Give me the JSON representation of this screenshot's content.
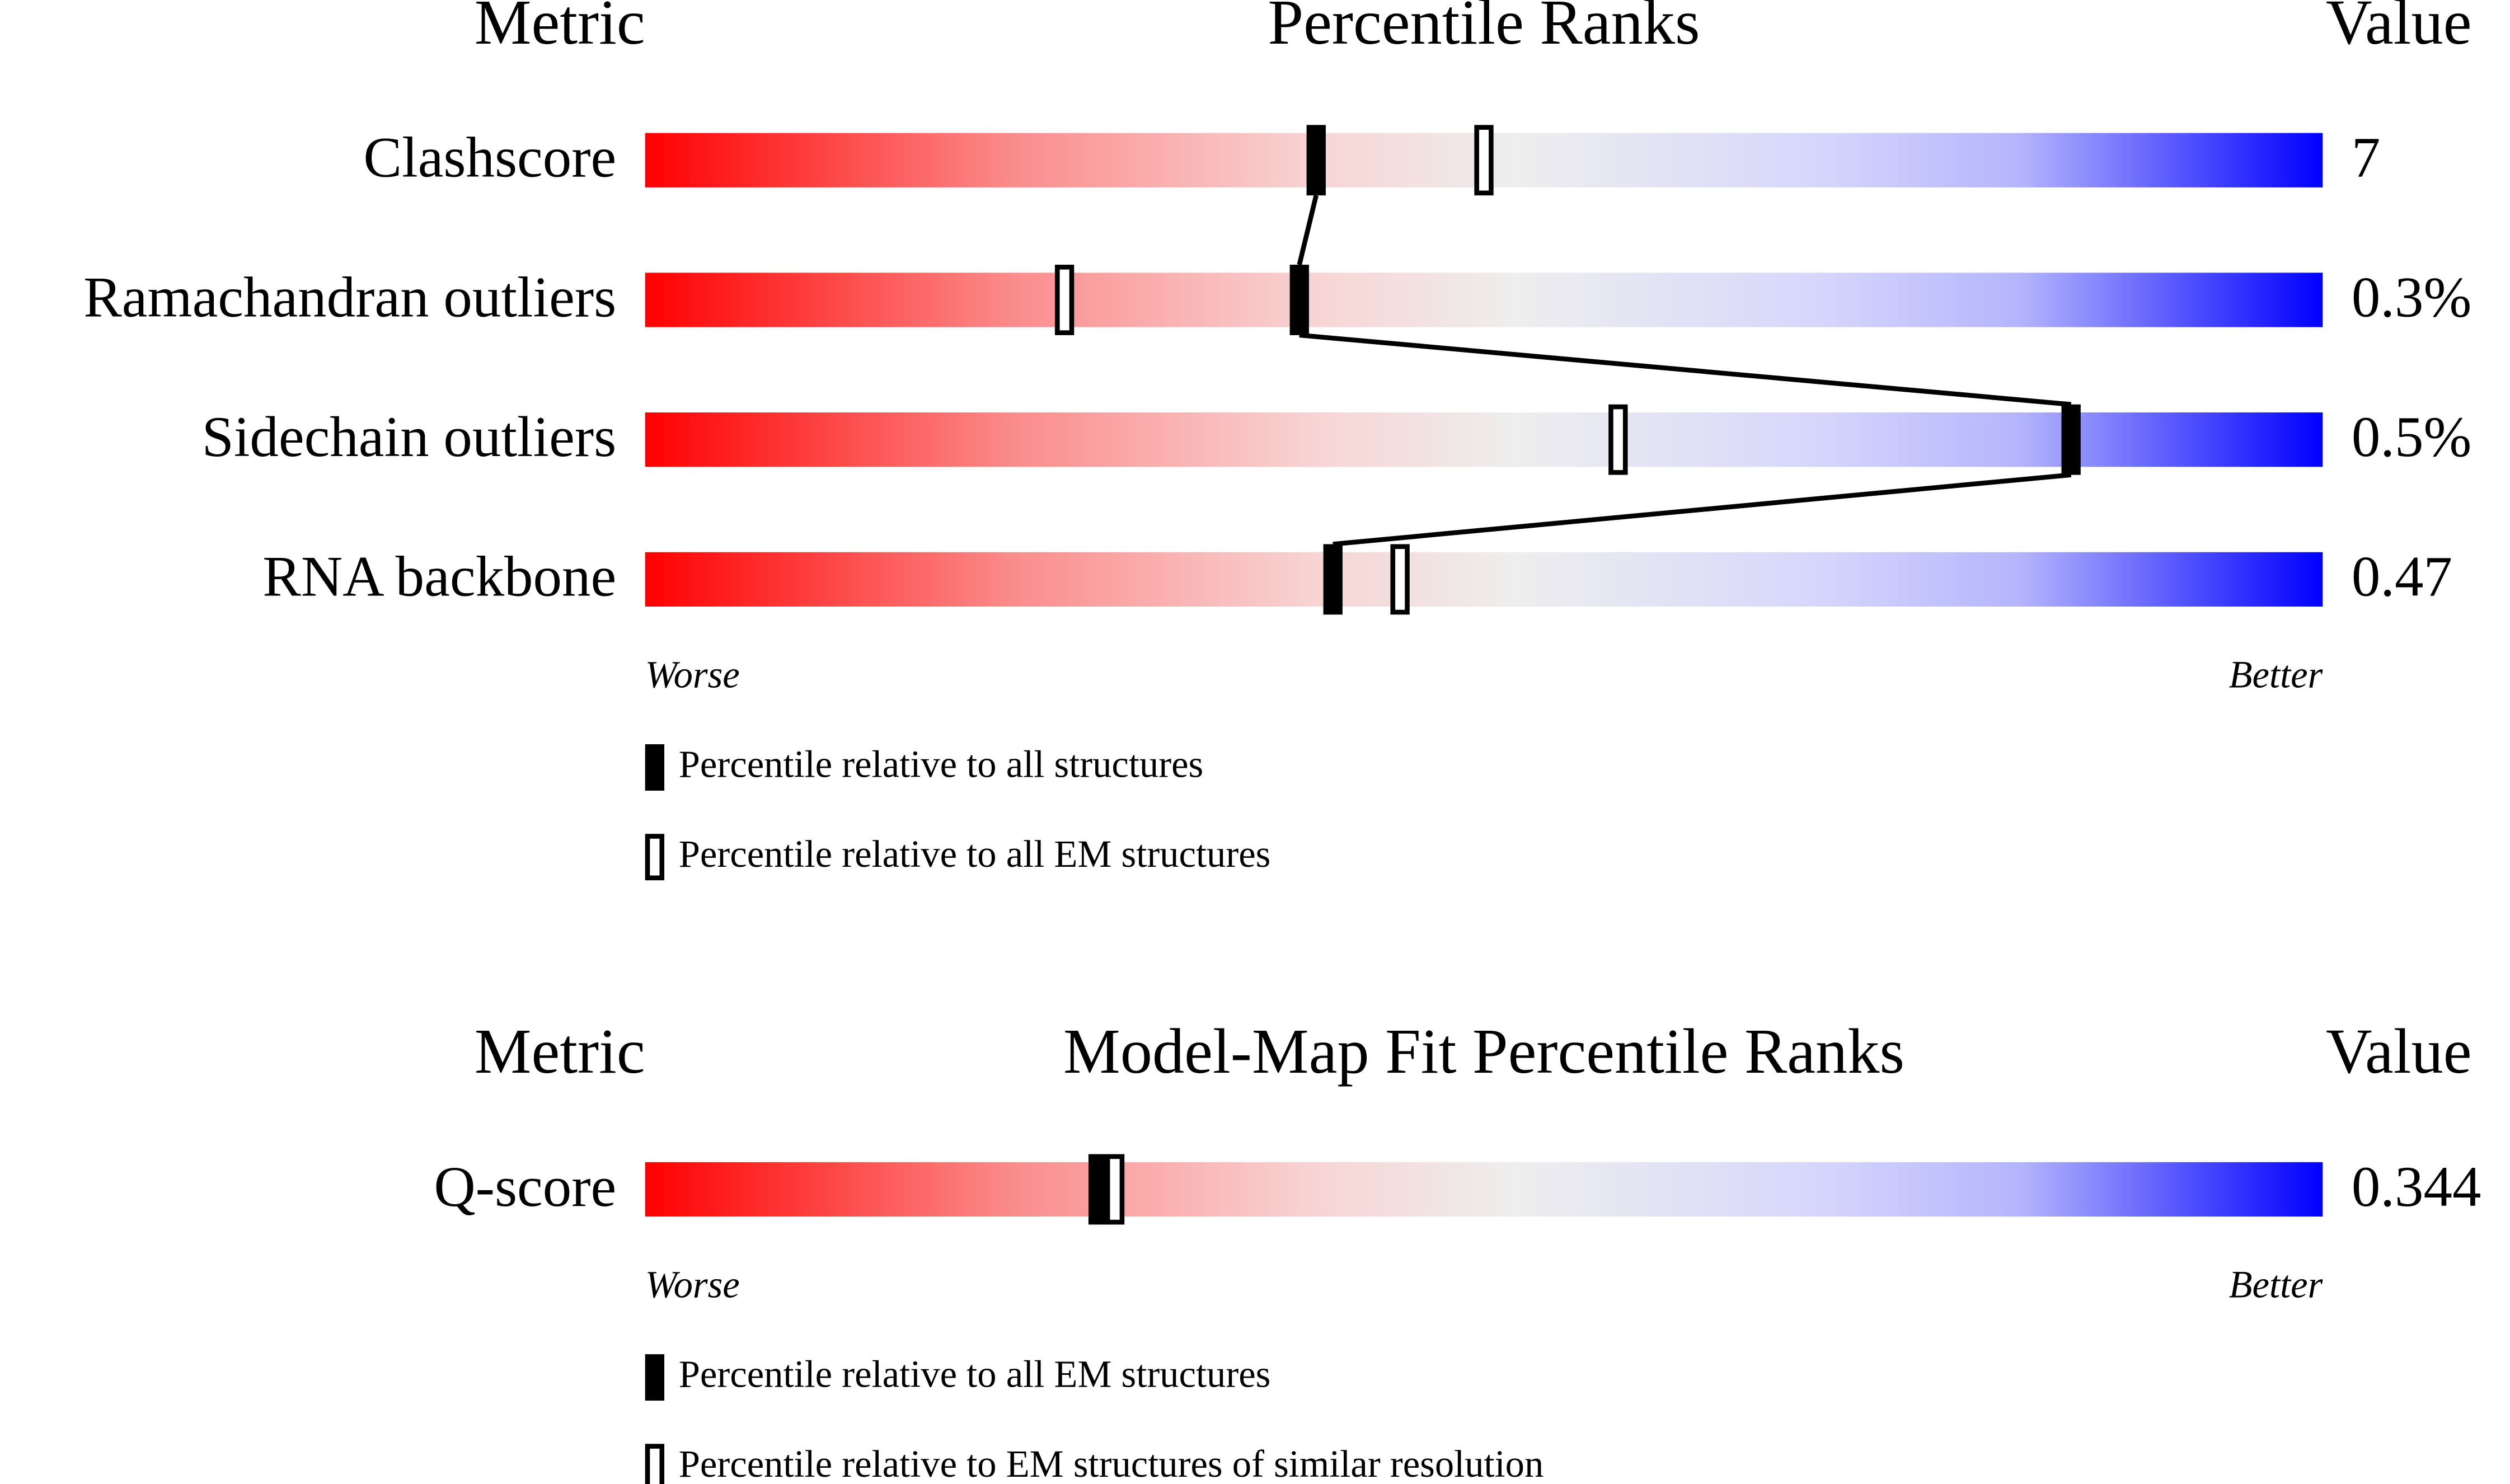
{
  "chart_data": [
    {
      "type": "percentile",
      "metric_header": "Metric",
      "title": "Percentile Ranks",
      "value_header": "Value",
      "categories": [
        "Clashscore",
        "Ramachandran outliers",
        "Sidechain outliers",
        "RNA backbone"
      ],
      "metric_values": [
        "7",
        "0.3%",
        "0.5%",
        "0.47"
      ],
      "xlim": [
        0,
        100
      ],
      "worse": "Worse",
      "better": "Better",
      "connect_filled": true,
      "series": [
        {
          "name": "Percentile relative to all structures",
          "style": "filled",
          "color": "#000000",
          "values": [
            40,
            39,
            85,
            41
          ]
        },
        {
          "name": "Percentile relative to all EM structures",
          "style": "open",
          "color": "#000000",
          "values": [
            50,
            25,
            58,
            45
          ]
        }
      ]
    },
    {
      "type": "percentile",
      "metric_header": "Metric",
      "title": "Model-Map Fit Percentile Ranks",
      "value_header": "Value",
      "categories": [
        "Q-score"
      ],
      "metric_values": [
        "0.344"
      ],
      "xlim": [
        0,
        100
      ],
      "worse": "Worse",
      "better": "Better",
      "connect_filled": true,
      "series": [
        {
          "name": "Percentile relative to all EM structures",
          "style": "filled",
          "color": "#000000",
          "values": [
            27
          ]
        },
        {
          "name": "Percentile relative to EM structures of similar resolution",
          "style": "open",
          "color": "#000000",
          "values": [
            28
          ]
        }
      ]
    }
  ]
}
